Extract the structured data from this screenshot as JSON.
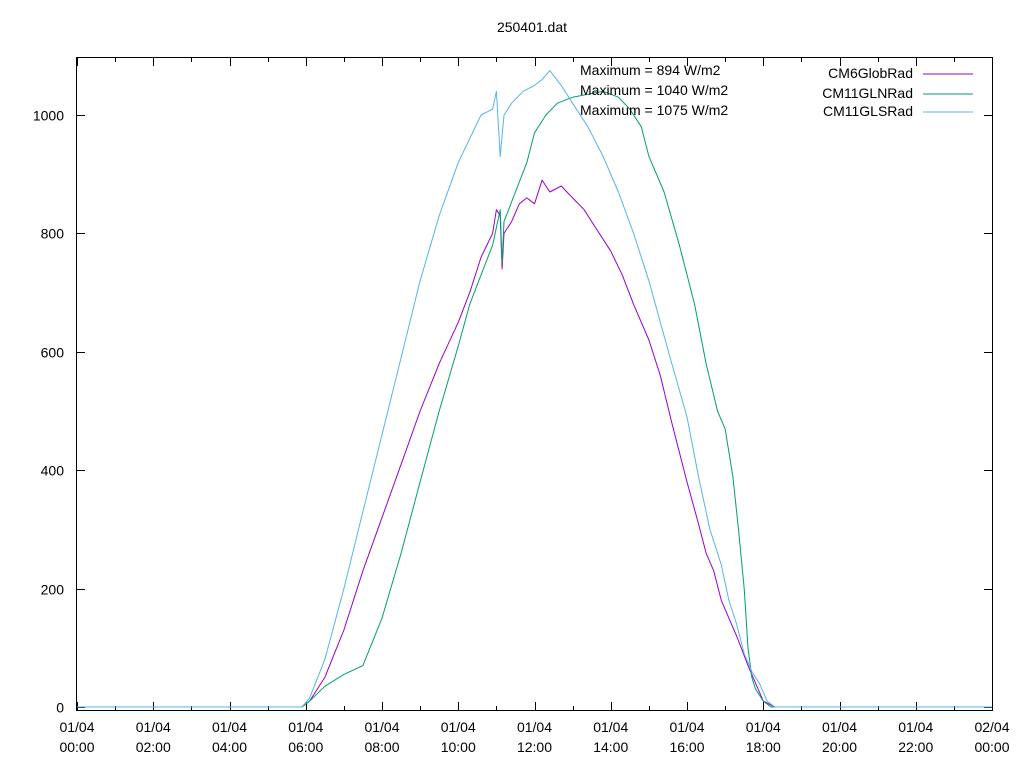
{
  "chart_data": {
    "type": "line",
    "title": "250401.dat",
    "xlabel": "",
    "ylabel": "",
    "xlim": [
      0,
      24
    ],
    "ylim": [
      0,
      1100
    ],
    "yticks": [
      0,
      200,
      400,
      600,
      800,
      1000
    ],
    "xticks": [
      {
        "t": 0,
        "date": "01/04",
        "time": "00:00"
      },
      {
        "t": 2,
        "date": "01/04",
        "time": "02:00"
      },
      {
        "t": 4,
        "date": "01/04",
        "time": "04:00"
      },
      {
        "t": 6,
        "date": "01/04",
        "time": "06:00"
      },
      {
        "t": 8,
        "date": "01/04",
        "time": "08:00"
      },
      {
        "t": 10,
        "date": "01/04",
        "time": "10:00"
      },
      {
        "t": 12,
        "date": "01/04",
        "time": "12:00"
      },
      {
        "t": 14,
        "date": "01/04",
        "time": "14:00"
      },
      {
        "t": 16,
        "date": "01/04",
        "time": "16:00"
      },
      {
        "t": 18,
        "date": "01/04",
        "time": "18:00"
      },
      {
        "t": 20,
        "date": "01/04",
        "time": "20:00"
      },
      {
        "t": 22,
        "date": "01/04",
        "time": "22:00"
      },
      {
        "t": 24,
        "date": "02/04",
        "time": "00:00"
      }
    ],
    "grid": false,
    "legend_position": "top-right",
    "annotations": [
      "Maximum = 894 W/m2",
      "Maximum = 1040 W/m2",
      "Maximum = 1075 W/m2"
    ],
    "series": [
      {
        "name": "CM6GlobRad",
        "color": "#9400d3",
        "x": [
          0,
          5.9,
          6.1,
          6.5,
          7.0,
          7.5,
          8.0,
          8.5,
          9.0,
          9.5,
          10.0,
          10.3,
          10.6,
          10.9,
          11.0,
          11.1,
          11.15,
          11.2,
          11.4,
          11.6,
          11.8,
          12.0,
          12.2,
          12.3,
          12.4,
          12.7,
          13.0,
          13.3,
          13.6,
          14.0,
          14.3,
          14.6,
          15.0,
          15.3,
          15.6,
          16.0,
          16.3,
          16.5,
          16.7,
          16.9,
          17.1,
          17.3,
          17.6,
          17.8,
          18.0,
          18.3,
          24
        ],
        "y": [
          0,
          0,
          10,
          50,
          130,
          230,
          320,
          410,
          500,
          580,
          650,
          700,
          760,
          800,
          840,
          830,
          740,
          800,
          820,
          850,
          860,
          850,
          890,
          880,
          870,
          880,
          860,
          840,
          810,
          770,
          730,
          680,
          620,
          560,
          480,
          380,
          310,
          260,
          230,
          180,
          150,
          120,
          70,
          40,
          10,
          0,
          0
        ]
      },
      {
        "name": "CM11GLNRad",
        "color": "#009e73",
        "x": [
          0,
          5.9,
          6.1,
          6.5,
          7.0,
          7.5,
          8.0,
          8.5,
          9.0,
          9.5,
          10.0,
          10.3,
          10.6,
          10.9,
          11.0,
          11.1,
          11.15,
          11.2,
          11.5,
          11.8,
          12.0,
          12.3,
          12.6,
          13.0,
          13.4,
          13.8,
          14.2,
          14.5,
          14.8,
          15.0,
          15.4,
          15.8,
          16.2,
          16.5,
          16.8,
          17.0,
          17.2,
          17.35,
          17.5,
          17.6,
          17.7,
          17.8,
          18.0,
          18.2,
          18.4,
          24
        ],
        "y": [
          0,
          0,
          10,
          35,
          55,
          70,
          150,
          260,
          380,
          500,
          610,
          680,
          730,
          780,
          810,
          840,
          750,
          820,
          870,
          920,
          970,
          1000,
          1020,
          1030,
          1035,
          1040,
          1030,
          1010,
          980,
          930,
          870,
          780,
          680,
          580,
          500,
          470,
          390,
          300,
          200,
          100,
          50,
          30,
          10,
          0,
          0,
          0
        ]
      },
      {
        "name": "CM11GLSRad",
        "color": "#56b4e9",
        "x": [
          0,
          5.9,
          6.1,
          6.5,
          7.0,
          7.5,
          8.0,
          8.5,
          9.0,
          9.5,
          10.0,
          10.3,
          10.6,
          10.9,
          11.0,
          11.1,
          11.2,
          11.4,
          11.7,
          12.0,
          12.2,
          12.4,
          12.7,
          13.0,
          13.4,
          13.8,
          14.2,
          14.6,
          15.0,
          15.3,
          15.6,
          16.0,
          16.3,
          16.6,
          16.9,
          17.1,
          17.3,
          17.5,
          17.7,
          17.9,
          18.1,
          18.3,
          24
        ],
        "y": [
          0,
          0,
          15,
          80,
          200,
          330,
          460,
          590,
          720,
          830,
          920,
          960,
          1000,
          1010,
          1040,
          930,
          1000,
          1020,
          1040,
          1050,
          1060,
          1075,
          1050,
          1020,
          980,
          930,
          870,
          800,
          720,
          650,
          580,
          490,
          390,
          300,
          240,
          180,
          140,
          90,
          60,
          40,
          10,
          0,
          0
        ]
      }
    ]
  }
}
